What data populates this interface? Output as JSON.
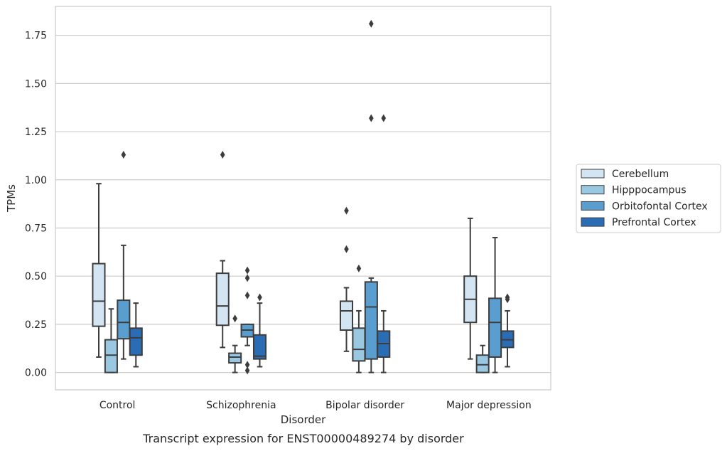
{
  "chart_data": {
    "type": "box",
    "caption": "Transcript expression for ENST00000489274 by disorder",
    "xlabel": "Disorder",
    "ylabel": "TPMs",
    "ylim": [
      -0.09,
      1.9
    ],
    "yticks": [
      "0.00",
      "0.25",
      "0.50",
      "0.75",
      "1.00",
      "1.25",
      "1.50",
      "1.75"
    ],
    "grid": "horizontal",
    "legend_position": "right",
    "categories": [
      "Control",
      "Schizophrenia",
      "Bipolar disorder",
      "Major depression"
    ],
    "series": [
      {
        "name": "Cerebellum",
        "color": "#d3e4f3",
        "boxes": [
          {
            "whislo": 0.08,
            "q1": 0.24,
            "med": 0.37,
            "q3": 0.565,
            "whishi": 0.98,
            "fliers": []
          },
          {
            "whislo": 0.13,
            "q1": 0.245,
            "med": 0.345,
            "q3": 0.515,
            "whishi": 0.58,
            "fliers": [
              1.13
            ]
          },
          {
            "whislo": 0.11,
            "q1": 0.22,
            "med": 0.32,
            "q3": 0.37,
            "whishi": 0.44,
            "fliers": [
              0.64,
              0.84
            ]
          },
          {
            "whislo": 0.07,
            "q1": 0.26,
            "med": 0.38,
            "q3": 0.5,
            "whishi": 0.8,
            "fliers": []
          }
        ]
      },
      {
        "name": "Hipppocampus",
        "color": "#9ac8e0",
        "boxes": [
          {
            "whislo": 0.0,
            "q1": 0.0,
            "med": 0.09,
            "q3": 0.17,
            "whishi": 0.33,
            "fliers": []
          },
          {
            "whislo": 0.0,
            "q1": 0.05,
            "med": 0.08,
            "q3": 0.1,
            "whishi": 0.14,
            "fliers": [
              0.28
            ]
          },
          {
            "whislo": 0.0,
            "q1": 0.06,
            "med": 0.12,
            "q3": 0.23,
            "whishi": 0.32,
            "fliers": [
              0.54
            ]
          },
          {
            "whislo": 0.0,
            "q1": 0.0,
            "med": 0.04,
            "q3": 0.09,
            "whishi": 0.14,
            "fliers": []
          }
        ]
      },
      {
        "name": "Orbitofontal Cortex",
        "color": "#5a9ecf",
        "boxes": [
          {
            "whislo": 0.07,
            "q1": 0.175,
            "med": 0.26,
            "q3": 0.375,
            "whishi": 0.66,
            "fliers": [
              1.13
            ]
          },
          {
            "whislo": 0.14,
            "q1": 0.185,
            "med": 0.22,
            "q3": 0.25,
            "whishi": 0.25,
            "fliers": [
              0.01,
              0.04,
              0.4,
              0.49,
              0.53
            ]
          },
          {
            "whislo": 0.0,
            "q1": 0.07,
            "med": 0.34,
            "q3": 0.47,
            "whishi": 0.49,
            "fliers": [
              1.32,
              1.81
            ]
          },
          {
            "whislo": 0.0,
            "q1": 0.08,
            "med": 0.26,
            "q3": 0.385,
            "whishi": 0.7,
            "fliers": []
          }
        ]
      },
      {
        "name": "Prefrontal Cortex",
        "color": "#2a6db4",
        "boxes": [
          {
            "whislo": 0.03,
            "q1": 0.09,
            "med": 0.18,
            "q3": 0.23,
            "whishi": 0.36,
            "fliers": []
          },
          {
            "whislo": 0.03,
            "q1": 0.07,
            "med": 0.085,
            "q3": 0.195,
            "whishi": 0.36,
            "fliers": [
              0.39
            ]
          },
          {
            "whislo": 0.0,
            "q1": 0.08,
            "med": 0.15,
            "q3": 0.215,
            "whishi": 0.32,
            "fliers": [
              1.32
            ]
          },
          {
            "whislo": 0.03,
            "q1": 0.13,
            "med": 0.17,
            "q3": 0.215,
            "whishi": 0.32,
            "fliers": [
              0.38,
              0.39
            ]
          }
        ]
      }
    ]
  }
}
